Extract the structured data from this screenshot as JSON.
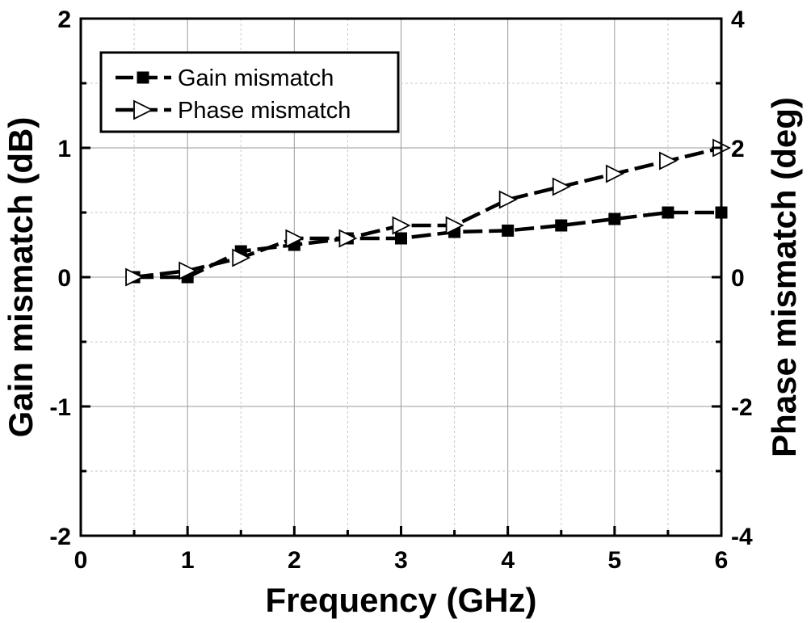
{
  "chart_data": {
    "type": "line",
    "title": "",
    "xlabel": "Frequency (GHz)",
    "ylabel_left": "Gain mismatch (dB)",
    "ylabel_right": "Phase mismatch (deg)",
    "xlim": [
      0,
      6
    ],
    "ylim_left": [
      -2,
      2
    ],
    "ylim_right": [
      -4,
      4
    ],
    "x_ticks": [
      0,
      1,
      2,
      3,
      4,
      5,
      6
    ],
    "y_ticks_left": [
      -2,
      -1,
      0,
      1,
      2
    ],
    "y_ticks_right": [
      -4,
      -2,
      0,
      2,
      4
    ],
    "grid": true,
    "legend_position": "top-left",
    "series": [
      {
        "name": "Gain mismatch",
        "axis": "left",
        "marker": "filled-square",
        "line_style": "dash",
        "color": "#000000",
        "x": [
          0.5,
          1.0,
          1.5,
          2.0,
          2.5,
          3.0,
          3.5,
          4.0,
          4.5,
          5.0,
          5.5,
          6.0
        ],
        "y": [
          0.0,
          0.0,
          0.2,
          0.25,
          0.3,
          0.3,
          0.35,
          0.36,
          0.4,
          0.45,
          0.5,
          0.5
        ]
      },
      {
        "name": "Phase mismatch",
        "axis": "right",
        "marker": "open-triangle-right",
        "line_style": "dash",
        "color": "#000000",
        "x": [
          0.5,
          1.0,
          1.5,
          2.0,
          2.5,
          3.0,
          3.5,
          4.0,
          4.5,
          5.0,
          5.5,
          6.0
        ],
        "y": [
          0.0,
          0.1,
          0.3,
          0.6,
          0.6,
          0.8,
          0.8,
          1.2,
          1.4,
          1.6,
          1.8,
          2.0
        ]
      }
    ]
  }
}
